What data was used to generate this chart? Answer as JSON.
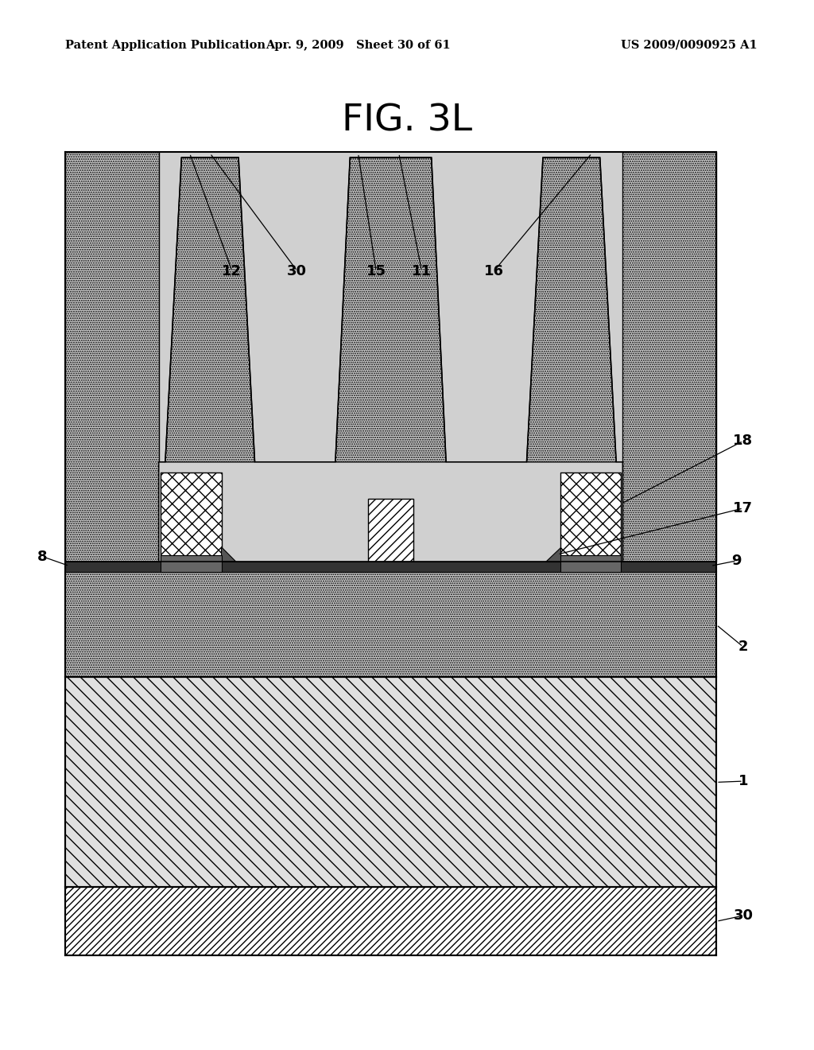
{
  "title": "FIG. 3L",
  "header_left": "Patent Application Publication",
  "header_mid": "Apr. 9, 2009   Sheet 30 of 61",
  "header_right": "US 2009/0090925 A1",
  "bg_color": "#ffffff",
  "fig_width": 10.24,
  "fig_height": 13.2
}
